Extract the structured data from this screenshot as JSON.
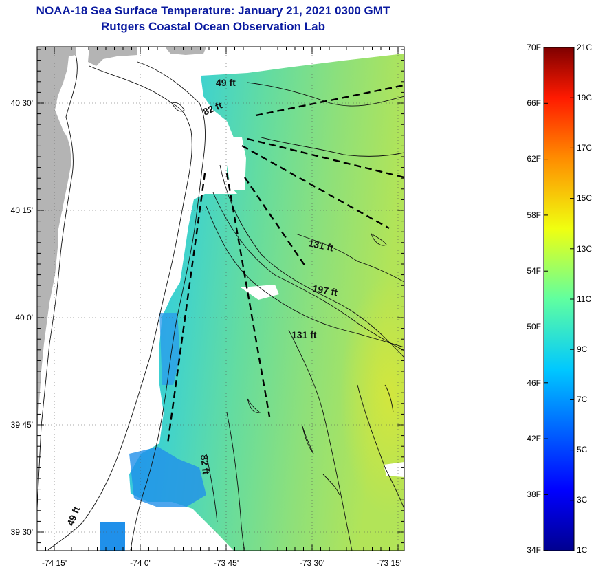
{
  "header": {
    "title": "NOAA-18 Sea Surface Temperature:  January 21, 2021 0300 GMT",
    "subtitle": "Rutgers Coastal Ocean Observation Lab"
  },
  "axes": {
    "lat_ticks": [
      "40 30'",
      "40 15'",
      "40 0'",
      "39 45'",
      "39 30'"
    ],
    "lon_ticks": [
      "-74 15'",
      "-74 0'",
      "-73 45'",
      "-73 30'",
      "-73 15'"
    ]
  },
  "depth_labels": [
    "49 ft",
    "82 ft",
    "131 ft",
    "197 ft",
    "131 ft",
    "82 ft",
    "49 ft"
  ],
  "colorbar": {
    "fahrenheit": [
      "70F",
      "66F",
      "62F",
      "58F",
      "54F",
      "50F",
      "46F",
      "42F",
      "38F",
      "34F"
    ],
    "celsius": [
      "21C",
      "19C",
      "17C",
      "15C",
      "13C",
      "11C",
      "9C",
      "7C",
      "5C",
      "3C",
      "1C"
    ]
  },
  "colors": {
    "title": "#0a1aa0",
    "land": "#b4b4b4",
    "water_main": "#52d6a6",
    "water_warm": "#c8e850",
    "water_cold": "#1890e8"
  }
}
